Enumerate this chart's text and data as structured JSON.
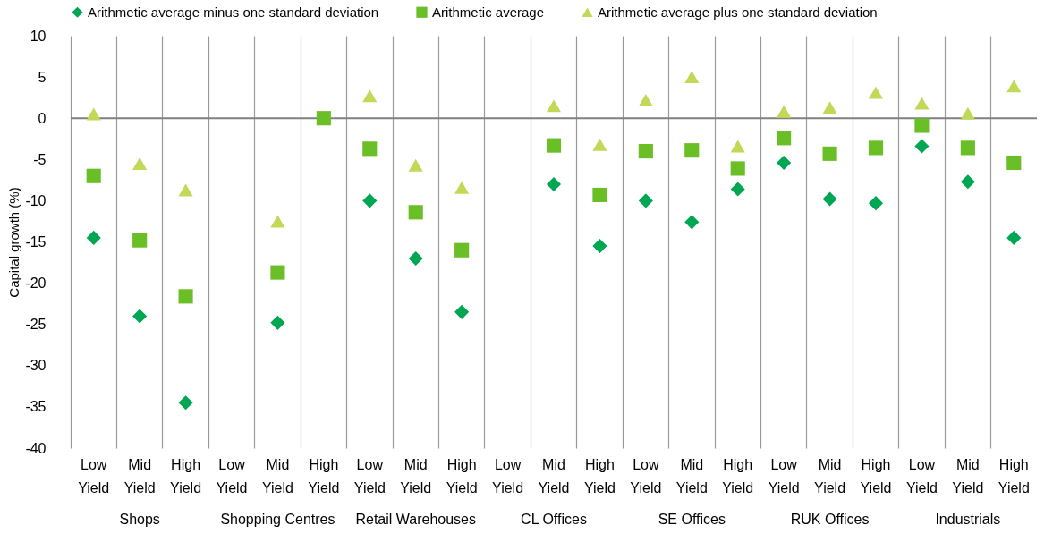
{
  "chart_data": {
    "type": "scatter",
    "ylabel": "Capital growth (%)",
    "categories": [
      "Low Yield",
      "Mid Yield",
      "High Yield",
      "Low Yield",
      "Mid Yield",
      "High Yield",
      "Low Yield",
      "Mid Yield",
      "High Yield",
      "Low Yield",
      "Mid Yield",
      "High Yield",
      "Low Yield",
      "Mid Yield",
      "High Yield",
      "Low Yield",
      "Mid Yield",
      "High Yield",
      "Low Yield",
      "Mid Yield",
      "High Yield"
    ],
    "annotations": [
      "Shops",
      "Shopping Centres",
      "Retail Warehouses",
      "CL Offices",
      "SE Offices",
      "RUK Offices",
      "Industrials"
    ],
    "series": [
      {
        "name": "Arithmetic average minus one standard deviation",
        "color": "#00a651",
        "marker": "diamond",
        "values": [
          -14.5,
          -24,
          -34.5,
          null,
          -24.8,
          null,
          -10,
          -17,
          -23.5,
          null,
          -8,
          -15.5,
          -10,
          -12.6,
          -8.6,
          -5.4,
          -9.8,
          -10.3,
          -3.4,
          -7.7,
          -14.5
        ]
      },
      {
        "name": "Arithmetic average",
        "color": "#6abf27",
        "marker": "square",
        "values": [
          -7,
          -14.8,
          -21.6,
          null,
          -18.7,
          0,
          -3.7,
          -11.4,
          -16,
          null,
          -3.3,
          -9.3,
          -4,
          -3.9,
          -6.1,
          -2.4,
          -4.3,
          -3.6,
          -0.9,
          -3.6,
          -5.4
        ]
      },
      {
        "name": "Arithmetic average plus one standard deviation",
        "color": "#c0d957",
        "marker": "triangle",
        "values": [
          0.5,
          -5.5,
          -8.7,
          null,
          -12.5,
          null,
          2.7,
          -5.7,
          -8.4,
          null,
          1.5,
          -3.2,
          2.2,
          5,
          -3.4,
          0.8,
          1.3,
          3.1,
          1.8,
          0.6,
          3.9
        ]
      }
    ],
    "ylim": [
      -40,
      10
    ],
    "yticks": [
      -40,
      -35,
      -30,
      -25,
      -20,
      -15,
      -10,
      -5,
      0,
      5,
      10
    ],
    "ref_lines": [
      {
        "axis": "y",
        "value": 0,
        "color": "#808080"
      }
    ],
    "grid": "x",
    "legend": "top"
  }
}
